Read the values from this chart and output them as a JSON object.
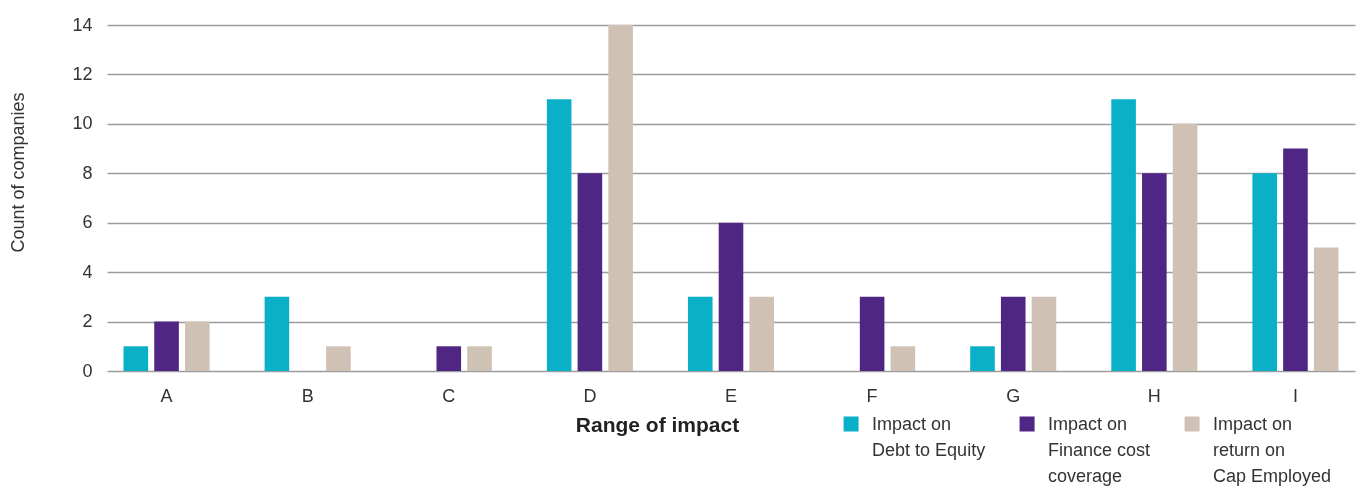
{
  "chart_data": {
    "type": "bar",
    "xlabel": "Range of impact",
    "ylabel": "Count of companies",
    "categories": [
      "A",
      "B",
      "C",
      "D",
      "E",
      "F",
      "G",
      "H",
      "I"
    ],
    "series": [
      {
        "name": "Impact on Debt to Equity",
        "color": "#0ab0c7",
        "values": [
          1,
          3,
          0,
          11,
          3,
          0,
          1,
          11,
          8
        ]
      },
      {
        "name": "Impact on Finance cost coverage",
        "color": "#4f2683",
        "values": [
          2,
          0,
          1,
          8,
          6,
          3,
          3,
          8,
          9
        ]
      },
      {
        "name": "Impact on return on Cap Employed",
        "color": "#cfc2b4",
        "values": [
          2,
          1,
          1,
          14,
          3,
          1,
          3,
          10,
          5
        ]
      }
    ],
    "ylim": [
      0,
      14
    ],
    "yticks": [
      0,
      2,
      4,
      6,
      8,
      10,
      12,
      14
    ],
    "grid": "y",
    "legend": "bottom right"
  }
}
